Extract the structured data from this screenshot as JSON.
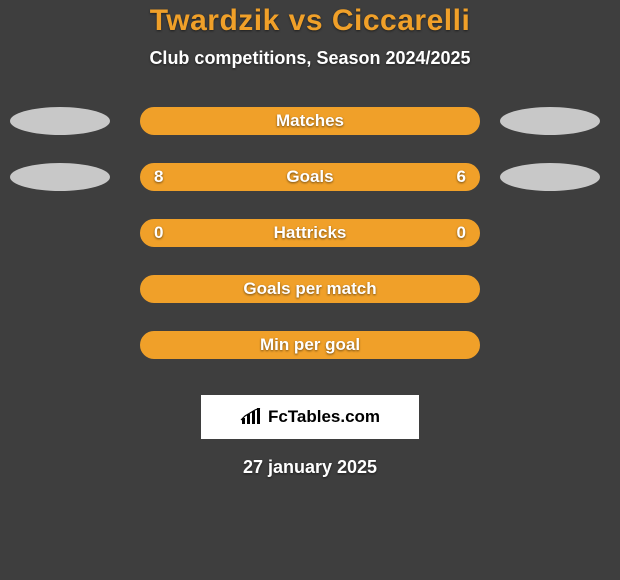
{
  "colors": {
    "background": "#3e3e3e",
    "accent": "#f0a029",
    "text_light": "#ffffff",
    "ellipse": "#c8c8c8",
    "logo_bg": "#ffffff",
    "logo_text": "#000000",
    "pill_text": "#ffffff"
  },
  "typography": {
    "title_size": 30,
    "subtitle_size": 18,
    "pill_label_size": 17,
    "pill_value_size": 17,
    "logo_size": 17,
    "date_size": 18
  },
  "layout": {
    "pill_width": 340,
    "pill_height": 28,
    "ellipse_width": 100,
    "ellipse_height": 28
  },
  "title": "Twardzik vs Ciccarelli",
  "subtitle": "Club competitions, Season 2024/2025",
  "rows": [
    {
      "label": "Matches",
      "left": "",
      "right": "",
      "left_ellipse": true,
      "right_ellipse": true
    },
    {
      "label": "Goals",
      "left": "8",
      "right": "6",
      "left_ellipse": true,
      "right_ellipse": true
    },
    {
      "label": "Hattricks",
      "left": "0",
      "right": "0",
      "left_ellipse": false,
      "right_ellipse": false
    },
    {
      "label": "Goals per match",
      "left": "",
      "right": "",
      "left_ellipse": false,
      "right_ellipse": false
    },
    {
      "label": "Min per goal",
      "left": "",
      "right": "",
      "left_ellipse": false,
      "right_ellipse": false
    }
  ],
  "logo": {
    "text": "FcTables.com",
    "icon_name": "bar-chart-icon"
  },
  "date_text": "27 january 2025"
}
